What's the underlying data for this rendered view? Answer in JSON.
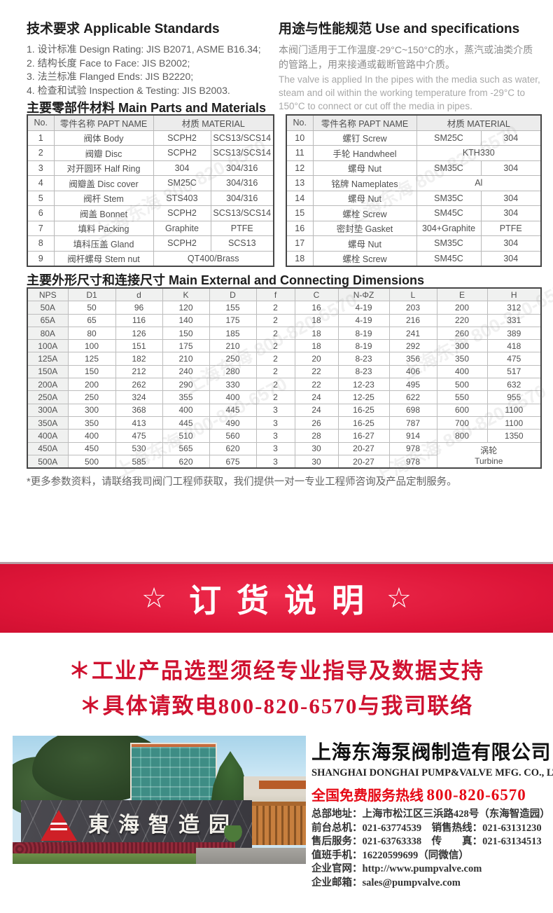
{
  "standards": {
    "title": "技术要求 Applicable Standards",
    "items": [
      "1. 设计标准 Design Rating: JIS B2071, ASME B16.34;",
      "2. 结构长度 Face to Face: JIS B2002;",
      "3. 法兰标准 Flanged Ends: JIS B2220;",
      "4. 检查和试验 Inspection & Testing: JIS B2003."
    ]
  },
  "usage": {
    "title": "用途与性能规范 Use and specifications",
    "desc_zh": "本阀门适用于工作温度-29°C~150°C的水，蒸汽或油类介质的管路上，用来接通或截断管路中介质。",
    "desc_en": "The valve is applied In the pipes with the media such as water, steam and oil within the working temperature from -29°C to 150°C to connect or cut off the media in pipes."
  },
  "parts": {
    "section_title": "主要零部件材料 Main Parts and Materials",
    "headers": {
      "no": "No.",
      "name": "零件名称 PAPT NAME",
      "material": "材质 MATERIAL"
    },
    "left_rows": [
      {
        "no": "1",
        "name": "阀体 Body",
        "m1": "SCPH2",
        "m2": "SCS13/SCS14"
      },
      {
        "no": "2",
        "name": "阀瓣 Disc",
        "m1": "SCPH2",
        "m2": "SCS13/SCS14"
      },
      {
        "no": "3",
        "name": "对开圆环 Half Ring",
        "m1": "304",
        "m2": "304/316"
      },
      {
        "no": "4",
        "name": "阀瓣盖 Disc cover",
        "m1": "SM25C",
        "m2": "304/316"
      },
      {
        "no": "5",
        "name": "阀杆 Stem",
        "m1": "STS403",
        "m2": "304/316"
      },
      {
        "no": "6",
        "name": "阀盖 Bonnet",
        "m1": "SCPH2",
        "m2": "SCS13/SCS14"
      },
      {
        "no": "7",
        "name": "填料 Packing",
        "m1": "Graphite",
        "m2": "PTFE"
      },
      {
        "no": "8",
        "name": "填科压盖 Gland",
        "m1": "SCPH2",
        "m2": "SCS13"
      },
      {
        "no": "9",
        "name": "阀杆螺母 Stem nut",
        "span": true,
        "m": "QT400/Brass"
      }
    ],
    "right_rows": [
      {
        "no": "10",
        "name": "螺钉 Screw",
        "m1": "SM25C",
        "m2": "304"
      },
      {
        "no": "11",
        "name": "手轮 Handwheel",
        "span": true,
        "m": "KTH330"
      },
      {
        "no": "12",
        "name": "螺母 Nut",
        "m1": "SM35C",
        "m2": "304"
      },
      {
        "no": "13",
        "name": "铭牌 Nameplates",
        "span": true,
        "m": "Al"
      },
      {
        "no": "14",
        "name": "螺母 Nut",
        "m1": "SM35C",
        "m2": "304"
      },
      {
        "no": "15",
        "name": "螺栓 Screw",
        "m1": "SM45C",
        "m2": "304"
      },
      {
        "no": "16",
        "name": "密封垫 Gasket",
        "m1": "304+Graphite",
        "m2": "PTFE"
      },
      {
        "no": "17",
        "name": "螺母 Nut",
        "m1": "SM35C",
        "m2": "304"
      },
      {
        "no": "18",
        "name": "螺栓 Screw",
        "m1": "SM45C",
        "m2": "304"
      }
    ]
  },
  "dimensions": {
    "section_title": "主要外形尺寸和连接尺寸 Main External and Connecting Dimensions",
    "headers": [
      "NPS",
      "D1",
      "d",
      "K",
      "D",
      "f",
      "C",
      "N-ΦZ",
      "L",
      "E",
      "H"
    ],
    "rows": [
      [
        "50A",
        "50",
        "96",
        "120",
        "155",
        "2",
        "16",
        "4-19",
        "203",
        "200",
        "312"
      ],
      [
        "65A",
        "65",
        "116",
        "140",
        "175",
        "2",
        "18",
        "4-19",
        "216",
        "220",
        "331"
      ],
      [
        "80A",
        "80",
        "126",
        "150",
        "185",
        "2",
        "18",
        "8-19",
        "241",
        "260",
        "389"
      ],
      [
        "100A",
        "100",
        "151",
        "175",
        "210",
        "2",
        "18",
        "8-19",
        "292",
        "300",
        "418"
      ],
      [
        "125A",
        "125",
        "182",
        "210",
        "250",
        "2",
        "20",
        "8-23",
        "356",
        "350",
        "475"
      ],
      [
        "150A",
        "150",
        "212",
        "240",
        "280",
        "2",
        "22",
        "8-23",
        "406",
        "400",
        "517"
      ],
      [
        "200A",
        "200",
        "262",
        "290",
        "330",
        "2",
        "22",
        "12-23",
        "495",
        "500",
        "632"
      ],
      [
        "250A",
        "250",
        "324",
        "355",
        "400",
        "2",
        "24",
        "12-25",
        "622",
        "550",
        "955"
      ],
      [
        "300A",
        "300",
        "368",
        "400",
        "445",
        "3",
        "24",
        "16-25",
        "698",
        "600",
        "1100"
      ],
      [
        "350A",
        "350",
        "413",
        "445",
        "490",
        "3",
        "26",
        "16-25",
        "787",
        "700",
        "1100"
      ],
      [
        "400A",
        "400",
        "475",
        "510",
        "560",
        "3",
        "28",
        "16-27",
        "914",
        "800",
        "1350"
      ],
      [
        "450A",
        "450",
        "530",
        "565",
        "620",
        "3",
        "30",
        "20-27",
        "978"
      ],
      [
        "500A",
        "500",
        "585",
        "620",
        "675",
        "3",
        "30",
        "20-27",
        "978"
      ]
    ],
    "turbine_zh": "涡轮",
    "turbine_en": "Turbine"
  },
  "note": "*更多参数资料，请联络我司阀门工程师获取，我们提供一对一专业工程师咨询及产品定制服务。",
  "order_banner": {
    "star": "☆",
    "text": "订货说明"
  },
  "order_lines": [
    "＊工业产品选型须经专业指导及数据支持",
    "＊具体请致电800-820-6570与我司联络"
  ],
  "photo": {
    "sign_text": "東海智造园"
  },
  "company": {
    "name_zh": "上海东海泵阀制造有限公司",
    "name_en": "SHANGHAI DONGHAI PUMP&VALVE MFG. CO., LTD.",
    "hotline_label": "全国免费服务热线",
    "hotline_number": "800-820-6570",
    "info_lines": [
      "总部地址：上海市松江区三浜路428号（东海智造园）",
      "前台总机：021-63774539　销售热线：021-63131230",
      "售后服务：021-63763338　传　　真：021-63134513",
      "值班手机：16220599699（同微信）",
      "企业官网：http://www.pumpvalve.com",
      "企业邮箱：sales@pumpvalve.com"
    ]
  },
  "watermark": {
    "text": "上海东海 800-820-6570"
  }
}
